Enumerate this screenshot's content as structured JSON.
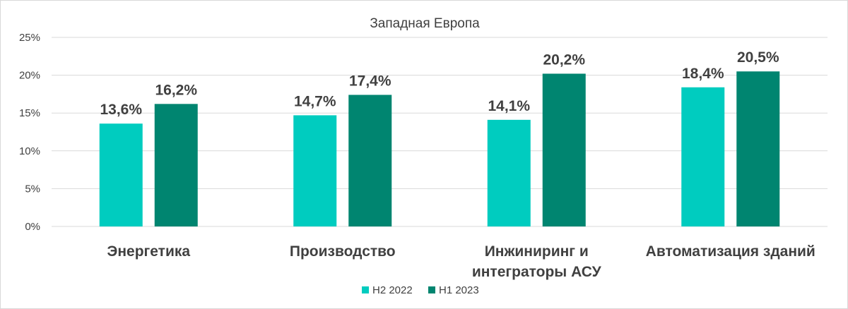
{
  "chart_data": {
    "type": "bar",
    "title": "Западная Европа",
    "categories": [
      [
        "Энергетика"
      ],
      [
        "Производство"
      ],
      [
        "Инжиниринг и",
        "интеграторы АСУ"
      ],
      [
        "Автоматизация зданий"
      ]
    ],
    "series": [
      {
        "name": "H2 2022",
        "color": "#00ccbf",
        "values": [
          13.6,
          14.7,
          14.1,
          18.4
        ],
        "labels": [
          "13,6%",
          "14,7%",
          "14,1%",
          "18,4%"
        ]
      },
      {
        "name": "H1 2023",
        "color": "#008570",
        "values": [
          16.2,
          17.4,
          20.2,
          20.5
        ],
        "labels": [
          "16,2%",
          "17,4%",
          "20,2%",
          "20,5%"
        ]
      }
    ],
    "ylim": [
      0,
      25
    ],
    "yticks": [
      0,
      5,
      10,
      15,
      20,
      25
    ],
    "ytick_labels": [
      "0%",
      "5%",
      "10%",
      "15%",
      "20%",
      "25%"
    ],
    "grid": true,
    "legend": "bottom",
    "xlabel": "",
    "ylabel": ""
  }
}
